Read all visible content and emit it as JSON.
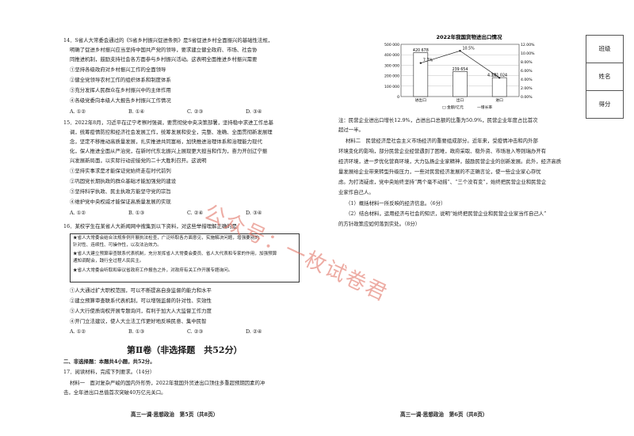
{
  "left": {
    "q14": {
      "stem": [
        "14．S省人大常委会通过的《S省乡村振兴促进条例》是S省促进乡村全面振兴的基础性法规，",
        "明确了促进乡村振兴应当坚持中国共产党的领导，要求建立健全政府、市场、社会协",
        "同推进机制，鼓励支持社会各方面参与乡村振兴活动。这表明全面推进乡村振兴需要"
      ],
      "items": [
        "①坚持各级政府对乡村振兴工作的全面领导",
        "②健全党领导农村工作的组织体系和制度体系",
        "③充分发挥人民群众在乡村振兴中的主体作用",
        "④各级党委向本级人大报告乡村振兴工作情况"
      ],
      "options": [
        "A. ①②",
        "B. ①④",
        "C. ②③",
        "D. ③④"
      ]
    },
    "q15": {
      "stem": [
        "15．2022年8月，习近平在辽宁考察时强调，要贯彻党中央决策部署，坚持稳中求进工作总基",
        "调，统筹疫情防控和经济社会发展工作，统筹发展和安全，完整、准确、全面贯彻新发展理",
        "念，坚定不移推动高质量发展，扎实推进共同富裕，加快推进治理体系和治理能力现代",
        "化，保人推进全面从严治党，在新时代东北振兴上展现更大担当和作为，奋力开创辽宁振",
        "兴发展新局面，以实际行动迎接党的二十大胜利召开。这说明"
      ],
      "items": [
        "①坚持实事求是才能保证党始终走在时代前列",
        "②巩固党长期执政的群众基础才能加强党的建设",
        "③坚持科学执政、民主执政方能坚守党的宗旨",
        "④维护党中央权威才能保证高质量发展的实现"
      ],
      "options": [
        "A. ①②",
        "B. ①③",
        "C. ②④",
        "D. ③④"
      ]
    },
    "q16": {
      "stem": "16．某校学生在某省人大新闻网中搜集到以下资料，对这些举措理解正确的是",
      "box": [
        "★省人大常委会结合法规条例开展执法检查，广泛听取各方面意见，实施解决问题，增强要别的",
        "针对性、连续性、可操作性，以及法治效力。",
        "★省人大建立预算审查联系代表机制，充分发挥省人大常委会委员、省人大代表和专家的作用，加强预算",
        "通知调配会，践行全过程人民民主。",
        "★省人大常委会听取和审议省政府工作报告之外，对政府有关工作开展专题询问。"
      ],
      "items": [
        "①人大通过扩大职权范围，可以不断提高自身监督的能力和水平",
        "②建立预算审查联系代表机制，可以增强监督的针对性、实效性",
        "③人大行使质询权开展专题询问，有利于加大人大监督工作力度",
        "④开门立法建议，使人大立法工作更好地反映民意、集中民智"
      ],
      "options": [
        "A. ①②",
        "B. ①③",
        "C. ②③",
        "D. ②④"
      ]
    },
    "part2_title": "第Ⅱ卷（非选择题　共52分）",
    "part2_note": "二、非选择题：本题共4小题，共52分。",
    "q17": "17．阅读材料，完成下列要求。（14分）",
    "material1": [
      "材料一　面对复杂严峻的国内外形势，2022年我国外贸进出口顶住多重超预期因素的冲",
      "击，全年进出口总值首次突破40万亿元关口。"
    ],
    "footer": "高三一调·思想政治　第5页（共8页）"
  },
  "right": {
    "note": [
      "注：民营企业进出口增长12.9%，占进出口总额的比重为50.9%，民营企业年度占比首次",
      "超过一半。"
    ],
    "material2": [
      "材料二　民营经济是社会主义市场经济的重要组成部分。近年来，受疫情冲击和内外部",
      "环境变化的影响，部分民营企业经营遇到了困难，政府采取、稳外资、市场准入等则瑞办开有",
      "经济环境，进一步优化营商环境，大力弘扬企业家精神，鼓励民营企业的创新发展。此外，经济高质",
      "量发展给企业带来转型升级压力，一些对民营经济发展的不正确言论，使一些企业家心存忧",
      "虑。为打消疑虑，党中央始终坚持“两个毫不动摇”、“三个没有变”，始终把民营企业和民营企",
      "业家作自己人。"
    ],
    "ask1": "（1）概括材料一所反映的经济信息。（6分）",
    "ask2": [
      "（2）结合材料，运用经济与社会的知识，说明“始终把民营企业和民营企业家当作自己人”",
      "的方针政策应如何落到实处。（8分）"
    ],
    "footer": "高三一调·思想政治　第6页（共8页）"
  },
  "side_labels": [
    "班级",
    "姓名",
    "得分"
  ],
  "watermark": "公众号：一枚试卷君",
  "chart_data": {
    "type": "bar",
    "title": "2022年我国货物进出口情况",
    "categories": [
      "进出口",
      "出口",
      "进口"
    ],
    "series": [
      {
        "name": "",
        "type": "bar",
        "values": [
          420678,
          239654,
          181024
        ]
      },
      {
        "name": "同比增长率",
        "type": "line",
        "values": [
          7.7,
          10.5,
          4.3
        ]
      }
    ],
    "bar_labels": [
      "420 678",
      "239 654",
      "181 024"
    ],
    "line_labels": [
      "7.7%",
      "10.5%",
      "4.3%"
    ],
    "y_left_ticks": [
      "500 000",
      "400 000",
      "300 000",
      "200 000",
      "100 000",
      "0"
    ],
    "y_right_ticks": [
      "12.00%",
      "10.00%",
      "8.00%",
      "6.00%",
      "4.00%",
      "2.00%",
      "0.00%"
    ],
    "ylim_left": [
      0,
      500000
    ],
    "ylim_right": [
      0,
      12
    ],
    "legend": [
      "□ 金额/亿元",
      "—增长率"
    ],
    "legend_placement": "bottom"
  }
}
